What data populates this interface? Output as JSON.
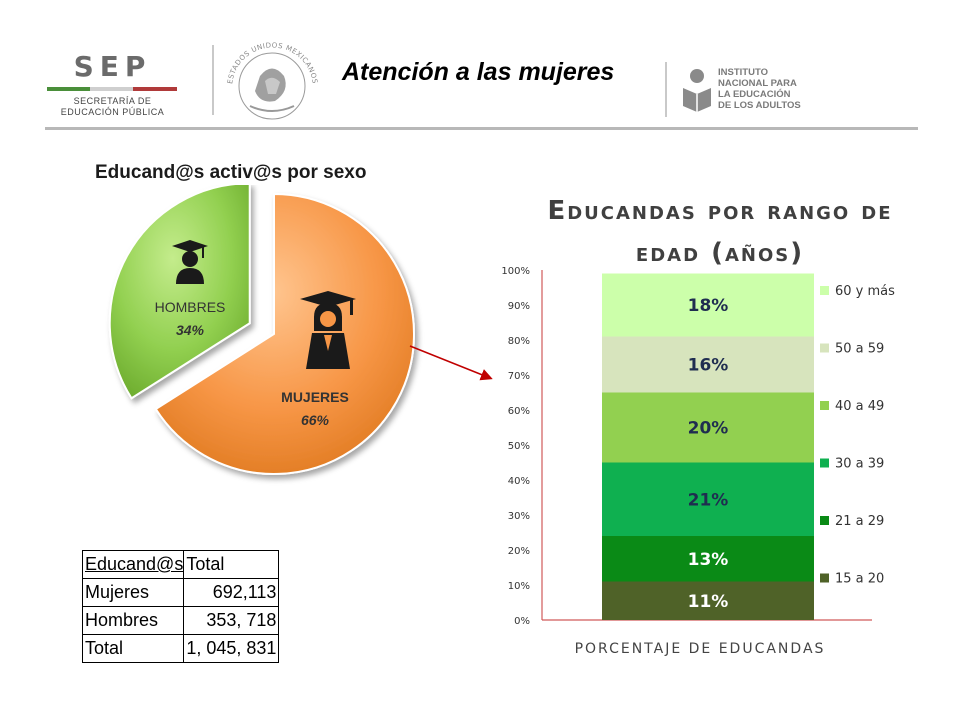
{
  "header": {
    "sep_logo": {
      "word": "SEP",
      "line1": "SECRETARÍA DE",
      "line2": "EDUCACIÓN PÚBLICA"
    },
    "emblem_name": "estados-unidos-mexicanos-seal",
    "emblem_text": "ESTADOS UNIDOS MEXICANOS",
    "title": "Atención a las mujeres",
    "inea_logo": {
      "line1": "INSTITUTO",
      "line2": "NACIONAL PARA",
      "line3": "LA EDUCACIÓN",
      "line4": "DE LOS ADULTOS"
    }
  },
  "pie_chart": {
    "title": "Educand@s activ@s por sexo",
    "chart_data": {
      "type": "pie",
      "slices": [
        {
          "label": "MUJERES",
          "value": 66,
          "value_label": "66%",
          "color": "#f79646"
        },
        {
          "label": "HOMBRES",
          "value": 34,
          "value_label": "34%",
          "color": "#92d050"
        }
      ]
    }
  },
  "table": {
    "headers": [
      "Educand@s",
      "Total"
    ],
    "rows": [
      {
        "label": "Mujeres",
        "value": "692,113"
      },
      {
        "label": "Hombres",
        "value": "353, 718"
      },
      {
        "label": "Total",
        "value": "1, 045, 831"
      }
    ]
  },
  "bar_chart": {
    "title_line1": "Educandas por rango de",
    "title_line2": "edad (años)",
    "chart_data": {
      "type": "bar",
      "stacked": true,
      "xlabel": "PORCENTAJE DE EDUCANDAS",
      "ylim": [
        0,
        100
      ],
      "yticks": [
        "0%",
        "10%",
        "20%",
        "30%",
        "40%",
        "50%",
        "60%",
        "70%",
        "80%",
        "90%",
        "100%"
      ],
      "legend_position": "right",
      "series": [
        {
          "name": "15 a 20",
          "value": 11,
          "value_label": "11%",
          "color": "#4f6228"
        },
        {
          "name": "21 a 29",
          "value": 13,
          "value_label": "13%",
          "color": "#0a8a16"
        },
        {
          "name": "30 a 39",
          "value": 21,
          "value_label": "21%",
          "color": "#0fb050"
        },
        {
          "name": "40 a 49",
          "value": 20,
          "value_label": "20%",
          "color": "#92d050"
        },
        {
          "name": "50 a 59",
          "value": 16,
          "value_label": "16%",
          "color": "#d7e4bd"
        },
        {
          "name": "60 y más",
          "value": 18,
          "value_label": "18%",
          "color": "#ccffaa"
        }
      ]
    }
  }
}
